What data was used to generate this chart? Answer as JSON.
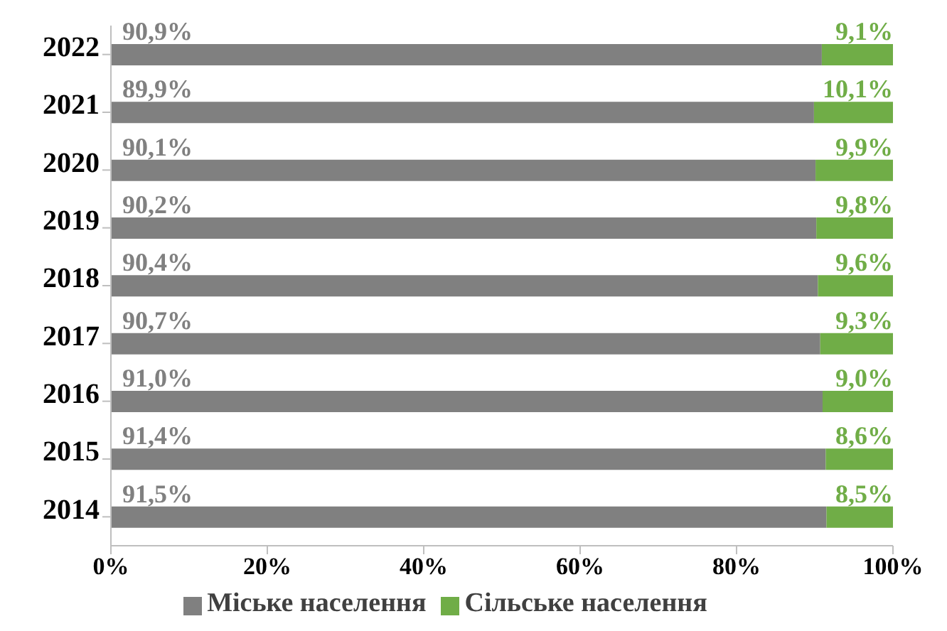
{
  "chart_data": {
    "type": "bar",
    "orientation": "horizontal",
    "stacked": true,
    "categories": [
      "2022",
      "2021",
      "2020",
      "2019",
      "2018",
      "2017",
      "2016",
      "2015",
      "2014"
    ],
    "series": [
      {
        "name": "Міське населення",
        "color": "#808080",
        "values": [
          90.9,
          89.9,
          90.1,
          90.2,
          90.4,
          90.7,
          91.0,
          91.4,
          91.5
        ],
        "value_labels": [
          "90,9%",
          "89,9%",
          "90,1%",
          "90,2%",
          "90,4%",
          "90,7%",
          "91,0%",
          "91,4%",
          "91,5%"
        ]
      },
      {
        "name": "Сільське населення",
        "color": "#70ad47",
        "values": [
          9.1,
          10.1,
          9.9,
          9.8,
          9.6,
          9.3,
          9.0,
          8.6,
          8.5
        ],
        "value_labels": [
          "9,1%",
          "10,1%",
          "9,9%",
          "9,8%",
          "9,6%",
          "9,3%",
          "9,0%",
          "8,6%",
          "8,5%"
        ]
      }
    ],
    "xlim": [
      0,
      100
    ],
    "xticks": [
      {
        "value": 0,
        "label": "0%"
      },
      {
        "value": 20,
        "label": "20%"
      },
      {
        "value": 40,
        "label": "40%"
      },
      {
        "value": 60,
        "label": "60%"
      },
      {
        "value": 80,
        "label": "80%"
      },
      {
        "value": 100,
        "label": "100%"
      }
    ],
    "legend": "bottom"
  }
}
